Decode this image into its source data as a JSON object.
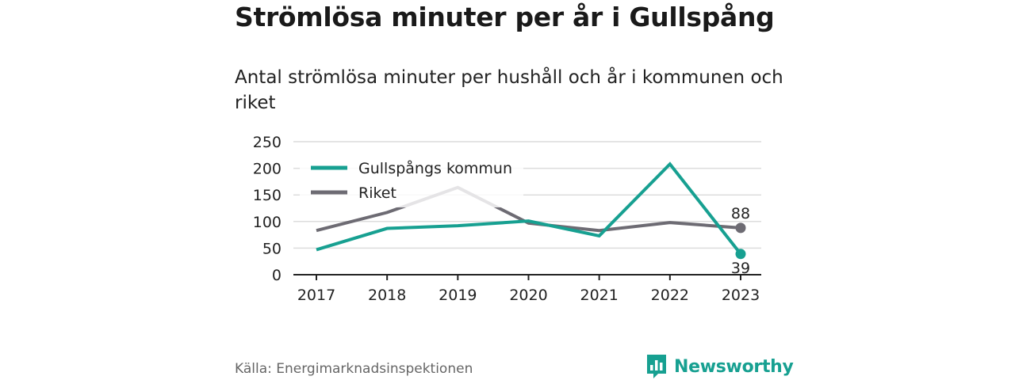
{
  "title": "Strömlösa minuter per år i Gullspång",
  "subtitle": "Antal strömlösa minuter per hushåll och år i kommunen och riket",
  "source": "Källa: Energimarknadsinspektionen",
  "brand": {
    "name": "Newsworthy",
    "icon": "newsworthy-logo-icon",
    "color": "#17a091"
  },
  "chart_data": {
    "type": "line",
    "x": [
      "2017",
      "2018",
      "2019",
      "2020",
      "2021",
      "2022",
      "2023"
    ],
    "yticks": [
      "0",
      "50",
      "100",
      "150",
      "200",
      "250"
    ],
    "ylim": [
      0,
      250
    ],
    "grid": true,
    "legend": "top-left",
    "series": [
      {
        "name": "Gullspångs kommun",
        "color": "#17a091",
        "values": [
          47,
          87,
          92,
          101,
          73,
          208,
          39
        ],
        "end_label": "39"
      },
      {
        "name": "Riket",
        "color": "#6d6b73",
        "values": [
          83,
          117,
          164,
          97,
          83,
          98,
          88
        ],
        "end_label": "88"
      }
    ]
  }
}
